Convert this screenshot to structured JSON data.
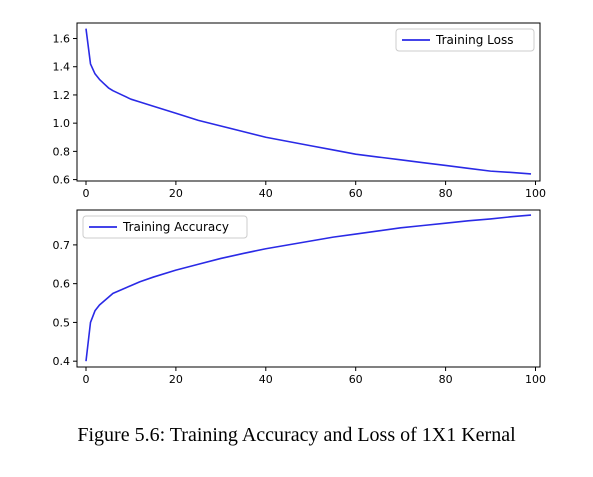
{
  "caption": "Figure 5.6: Training Accuracy and Loss of 1X1 Kernal",
  "chart_data": [
    {
      "type": "line",
      "legend": "top-right",
      "grid": false,
      "xlim": [
        -2,
        101
      ],
      "ylim": [
        0.59,
        1.71
      ],
      "xticks": [
        0,
        20,
        40,
        60,
        80,
        100
      ],
      "yticks": [
        0.6,
        0.8,
        1.0,
        1.2,
        1.4,
        1.6
      ],
      "series": [
        {
          "name": "Training Loss",
          "color": "#2a2ae6",
          "x": [
            0,
            1,
            2,
            3,
            4,
            5,
            6,
            8,
            10,
            12,
            15,
            20,
            25,
            30,
            35,
            40,
            45,
            50,
            55,
            60,
            65,
            70,
            75,
            80,
            85,
            90,
            95,
            99
          ],
          "y": [
            1.67,
            1.42,
            1.35,
            1.31,
            1.28,
            1.25,
            1.23,
            1.2,
            1.17,
            1.15,
            1.12,
            1.07,
            1.02,
            0.98,
            0.94,
            0.9,
            0.87,
            0.84,
            0.81,
            0.78,
            0.76,
            0.74,
            0.72,
            0.7,
            0.68,
            0.66,
            0.65,
            0.64
          ]
        }
      ]
    },
    {
      "type": "line",
      "legend": "top-left",
      "grid": false,
      "xlim": [
        -2,
        101
      ],
      "ylim": [
        0.385,
        0.79
      ],
      "xticks": [
        0,
        20,
        40,
        60,
        80,
        100
      ],
      "yticks": [
        0.4,
        0.5,
        0.6,
        0.7
      ],
      "series": [
        {
          "name": "Training Accuracy",
          "color": "#2a2ae6",
          "x": [
            0,
            1,
            2,
            3,
            4,
            5,
            6,
            8,
            10,
            12,
            15,
            20,
            25,
            30,
            35,
            40,
            45,
            50,
            55,
            60,
            65,
            70,
            75,
            80,
            85,
            90,
            95,
            99
          ],
          "y": [
            0.4,
            0.5,
            0.53,
            0.545,
            0.555,
            0.565,
            0.575,
            0.585,
            0.595,
            0.605,
            0.617,
            0.635,
            0.65,
            0.665,
            0.678,
            0.69,
            0.7,
            0.71,
            0.72,
            0.728,
            0.736,
            0.744,
            0.75,
            0.756,
            0.762,
            0.767,
            0.773,
            0.777
          ]
        }
      ]
    }
  ]
}
